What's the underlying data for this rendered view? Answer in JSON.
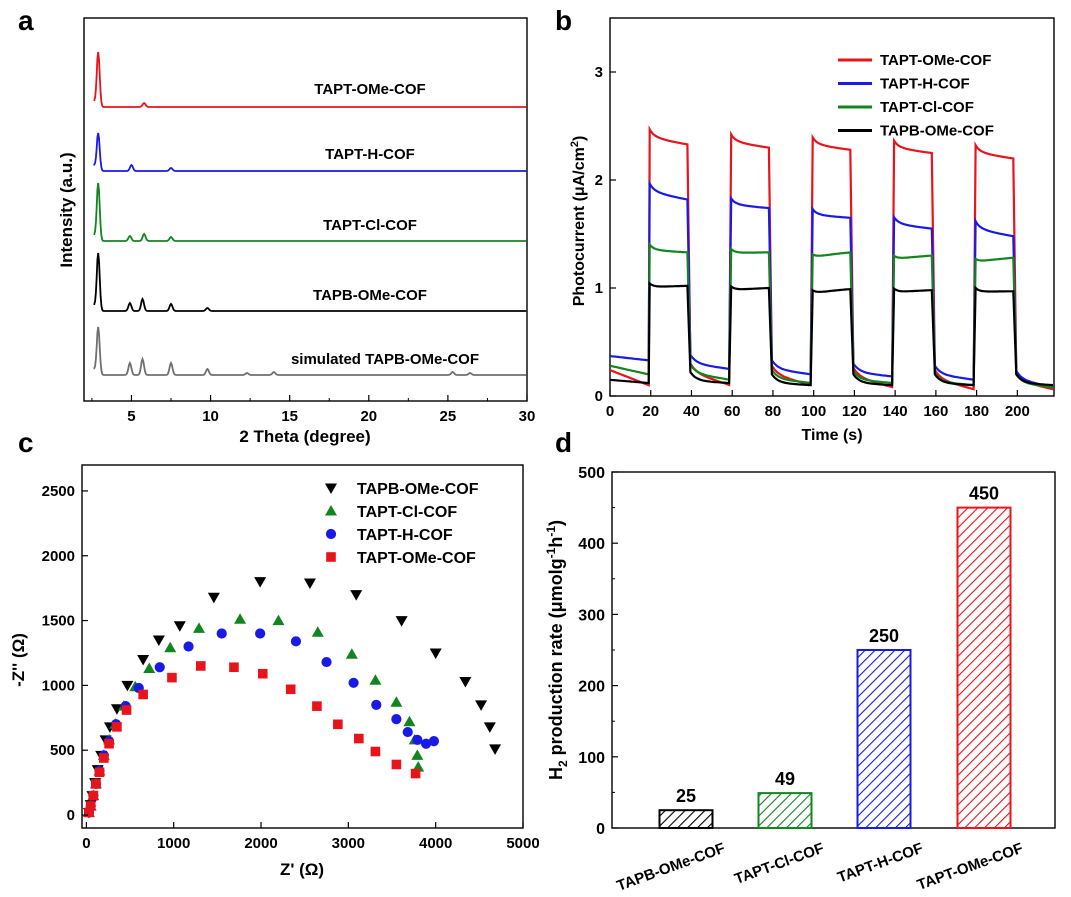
{
  "panels": {
    "a": {
      "label": "a"
    },
    "b": {
      "label": "b"
    },
    "c": {
      "label": "c"
    },
    "d": {
      "label": "d"
    }
  },
  "chart_data": [
    {
      "panel": "a",
      "type": "line",
      "xlabel": "2 Theta (degree)",
      "ylabel": "Intensity (a.u.)",
      "xlim": [
        2,
        30
      ],
      "xticks": [
        5,
        10,
        15,
        20,
        25,
        30
      ],
      "series": [
        {
          "name": "TAPT-OMe-COF",
          "color": "#e8141c",
          "baseline_y": 107,
          "peaks": [
            [
              2.9,
              55
            ],
            [
              5.8,
              4
            ]
          ]
        },
        {
          "name": "TAPT-H-COF",
          "color": "#1a1ae6",
          "baseline_y": 171,
          "peaks": [
            [
              2.9,
              38
            ],
            [
              5.0,
              6
            ],
            [
              7.5,
              3
            ]
          ]
        },
        {
          "name": "TAPT-Cl-COF",
          "color": "#12851f",
          "baseline_y": 241,
          "peaks": [
            [
              2.9,
              58
            ],
            [
              4.9,
              5
            ],
            [
              5.8,
              7
            ],
            [
              7.5,
              4
            ]
          ]
        },
        {
          "name": "TAPB-OMe-COF",
          "color": "#000000",
          "baseline_y": 311,
          "peaks": [
            [
              2.9,
              58
            ],
            [
              4.9,
              8
            ],
            [
              5.7,
              12
            ],
            [
              7.5,
              7
            ],
            [
              9.8,
              3
            ]
          ]
        },
        {
          "name": "simulated TAPB-OMe-COF",
          "color": "#707070",
          "baseline_y": 375,
          "peaks": [
            [
              2.9,
              48
            ],
            [
              4.9,
              12
            ],
            [
              5.7,
              16
            ],
            [
              7.5,
              12
            ],
            [
              9.8,
              6
            ],
            [
              12.3,
              2
            ],
            [
              14.0,
              3
            ],
            [
              25.3,
              3
            ],
            [
              26.4,
              2
            ]
          ]
        }
      ]
    },
    {
      "panel": "b",
      "type": "line",
      "xlabel": "Time (s)",
      "ylabel": "Photocurrent (μA/cm2)",
      "xlim": [
        0,
        218
      ],
      "ylim": [
        0,
        3.5
      ],
      "xticks": [
        0,
        20,
        40,
        60,
        80,
        100,
        120,
        140,
        160,
        180,
        200
      ],
      "yticks": [
        0,
        1,
        2,
        3
      ],
      "legend": "top-right",
      "on_intervals": [
        [
          19,
          38
        ],
        [
          59,
          78
        ],
        [
          99,
          118
        ],
        [
          139,
          158
        ],
        [
          179,
          198
        ]
      ],
      "series": [
        {
          "name": "TAPT-OMe-COF",
          "color": "#e8141c",
          "on_values": [
            [
              2.45,
              2.33
            ],
            [
              2.4,
              2.3
            ],
            [
              2.37,
              2.28
            ],
            [
              2.34,
              2.25
            ],
            [
              2.3,
              2.2
            ]
          ],
          "off_values": [
            [
              0.24,
              0.1
            ],
            [
              0.22,
              0.1
            ],
            [
              0.2,
              0.1
            ],
            [
              0.18,
              0.08
            ],
            [
              0.16,
              0.06
            ],
            [
              0.14,
              0.06
            ]
          ]
        },
        {
          "name": "TAPT-H-COF",
          "color": "#1a1ae6",
          "on_values": [
            [
              1.95,
              1.82
            ],
            [
              1.8,
              1.74
            ],
            [
              1.7,
              1.65
            ],
            [
              1.63,
              1.55
            ],
            [
              1.6,
              1.48
            ]
          ],
          "off_values": [
            [
              0.37,
              0.33
            ],
            [
              0.3,
              0.25
            ],
            [
              0.25,
              0.2
            ],
            [
              0.22,
              0.18
            ],
            [
              0.2,
              0.15
            ],
            [
              0.15,
              0.08
            ]
          ]
        },
        {
          "name": "TAPT-Cl-COF",
          "color": "#12851f",
          "on_values": [
            [
              1.37,
              1.33
            ],
            [
              1.32,
              1.33
            ],
            [
              1.26,
              1.33
            ],
            [
              1.25,
              1.3
            ],
            [
              1.22,
              1.28
            ]
          ],
          "off_values": [
            [
              0.28,
              0.2
            ],
            [
              0.21,
              0.15
            ],
            [
              0.16,
              0.12
            ],
            [
              0.15,
              0.12
            ],
            [
              0.13,
              0.1
            ],
            [
              0.12,
              0.08
            ]
          ]
        },
        {
          "name": "TAPB-OMe-COF",
          "color": "#000000",
          "on_values": [
            [
              1.0,
              1.02
            ],
            [
              0.97,
              1.0
            ],
            [
              0.93,
              0.99
            ],
            [
              0.95,
              0.98
            ],
            [
              0.96,
              0.97
            ]
          ],
          "off_values": [
            [
              0.15,
              0.12
            ],
            [
              0.14,
              0.12
            ],
            [
              0.12,
              0.1
            ],
            [
              0.12,
              0.1
            ],
            [
              0.12,
              0.1
            ],
            [
              0.12,
              0.1
            ]
          ]
        }
      ]
    },
    {
      "panel": "c",
      "type": "scatter",
      "xlabel": "Z' (Ω)",
      "ylabel": "-Z'' (Ω)",
      "xlim": [
        -50,
        5000
      ],
      "ylim": [
        -100,
        2700
      ],
      "xticks": [
        0,
        1000,
        2000,
        3000,
        4000,
        5000
      ],
      "yticks": [
        0,
        500,
        1000,
        1500,
        2000,
        2500
      ],
      "legend": "top-right",
      "series": [
        {
          "name": "TAPB-OMe-COF",
          "color": "#000000",
          "marker": "triangle-down",
          "points": [
            [
              30,
              20
            ],
            [
              50,
              80
            ],
            [
              70,
              150
            ],
            [
              100,
              250
            ],
            [
              130,
              350
            ],
            [
              170,
              460
            ],
            [
              220,
              580
            ],
            [
              270,
              680
            ],
            [
              350,
              820
            ],
            [
              470,
              1000
            ],
            [
              650,
              1200
            ],
            [
              830,
              1350
            ],
            [
              1070,
              1460
            ],
            [
              1460,
              1680
            ],
            [
              1990,
              1800
            ],
            [
              2560,
              1790
            ],
            [
              3090,
              1700
            ],
            [
              3610,
              1500
            ],
            [
              4000,
              1250
            ],
            [
              4340,
              1030
            ],
            [
              4520,
              850
            ],
            [
              4620,
              680
            ],
            [
              4680,
              510
            ]
          ]
        },
        {
          "name": "TAPT-Cl-COF",
          "color": "#12851f",
          "marker": "triangle-up",
          "points": [
            [
              30,
              20
            ],
            [
              50,
              70
            ],
            [
              80,
              150
            ],
            [
              110,
              240
            ],
            [
              150,
              340
            ],
            [
              200,
              460
            ],
            [
              260,
              580
            ],
            [
              330,
              700
            ],
            [
              430,
              840
            ],
            [
              560,
              990
            ],
            [
              720,
              1130
            ],
            [
              960,
              1290
            ],
            [
              1290,
              1440
            ],
            [
              1760,
              1510
            ],
            [
              2200,
              1500
            ],
            [
              2650,
              1410
            ],
            [
              3040,
              1240
            ],
            [
              3310,
              1040
            ],
            [
              3550,
              870
            ],
            [
              3700,
              720
            ],
            [
              3760,
              580
            ],
            [
              3790,
              460
            ],
            [
              3800,
              370
            ]
          ]
        },
        {
          "name": "TAPT-H-COF",
          "color": "#1a1ae6",
          "marker": "circle",
          "points": [
            [
              30,
              20
            ],
            [
              50,
              70
            ],
            [
              80,
              150
            ],
            [
              110,
              240
            ],
            [
              150,
              340
            ],
            [
              200,
              460
            ],
            [
              260,
              570
            ],
            [
              340,
              700
            ],
            [
              450,
              840
            ],
            [
              600,
              980
            ],
            [
              840,
              1140
            ],
            [
              1170,
              1300
            ],
            [
              1550,
              1400
            ],
            [
              1990,
              1400
            ],
            [
              2400,
              1340
            ],
            [
              2750,
              1180
            ],
            [
              3060,
              1020
            ],
            [
              3320,
              850
            ],
            [
              3550,
              740
            ],
            [
              3680,
              640
            ],
            [
              3790,
              580
            ],
            [
              3890,
              550
            ],
            [
              3980,
              570
            ]
          ]
        },
        {
          "name": "TAPT-OMe-COF",
          "color": "#e8141c",
          "marker": "square",
          "points": [
            [
              30,
              20
            ],
            [
              50,
              70
            ],
            [
              80,
              150
            ],
            [
              110,
              240
            ],
            [
              150,
              330
            ],
            [
              200,
              440
            ],
            [
              260,
              550
            ],
            [
              350,
              680
            ],
            [
              460,
              810
            ],
            [
              650,
              930
            ],
            [
              980,
              1060
            ],
            [
              1310,
              1150
            ],
            [
              1690,
              1140
            ],
            [
              2020,
              1090
            ],
            [
              2340,
              970
            ],
            [
              2640,
              840
            ],
            [
              2880,
              700
            ],
            [
              3120,
              590
            ],
            [
              3310,
              490
            ],
            [
              3550,
              390
            ],
            [
              3770,
              320
            ]
          ]
        }
      ]
    },
    {
      "panel": "d",
      "type": "bar",
      "ylabel": "H2 production rate (μmolg-1h-1)",
      "ylim": [
        0,
        500
      ],
      "yticks": [
        0,
        100,
        200,
        300,
        400,
        500
      ],
      "categories": [
        "TAPB-OMe-COF",
        "TAPT-Cl-COF",
        "TAPT-H-COF",
        "TAPT-OMe-COF"
      ],
      "values": [
        25,
        49,
        250,
        450
      ],
      "value_labels": [
        "25",
        "49",
        "250",
        "450"
      ],
      "colors": [
        "#000000",
        "#12851f",
        "#1a1ae6",
        "#e8141c"
      ]
    }
  ]
}
